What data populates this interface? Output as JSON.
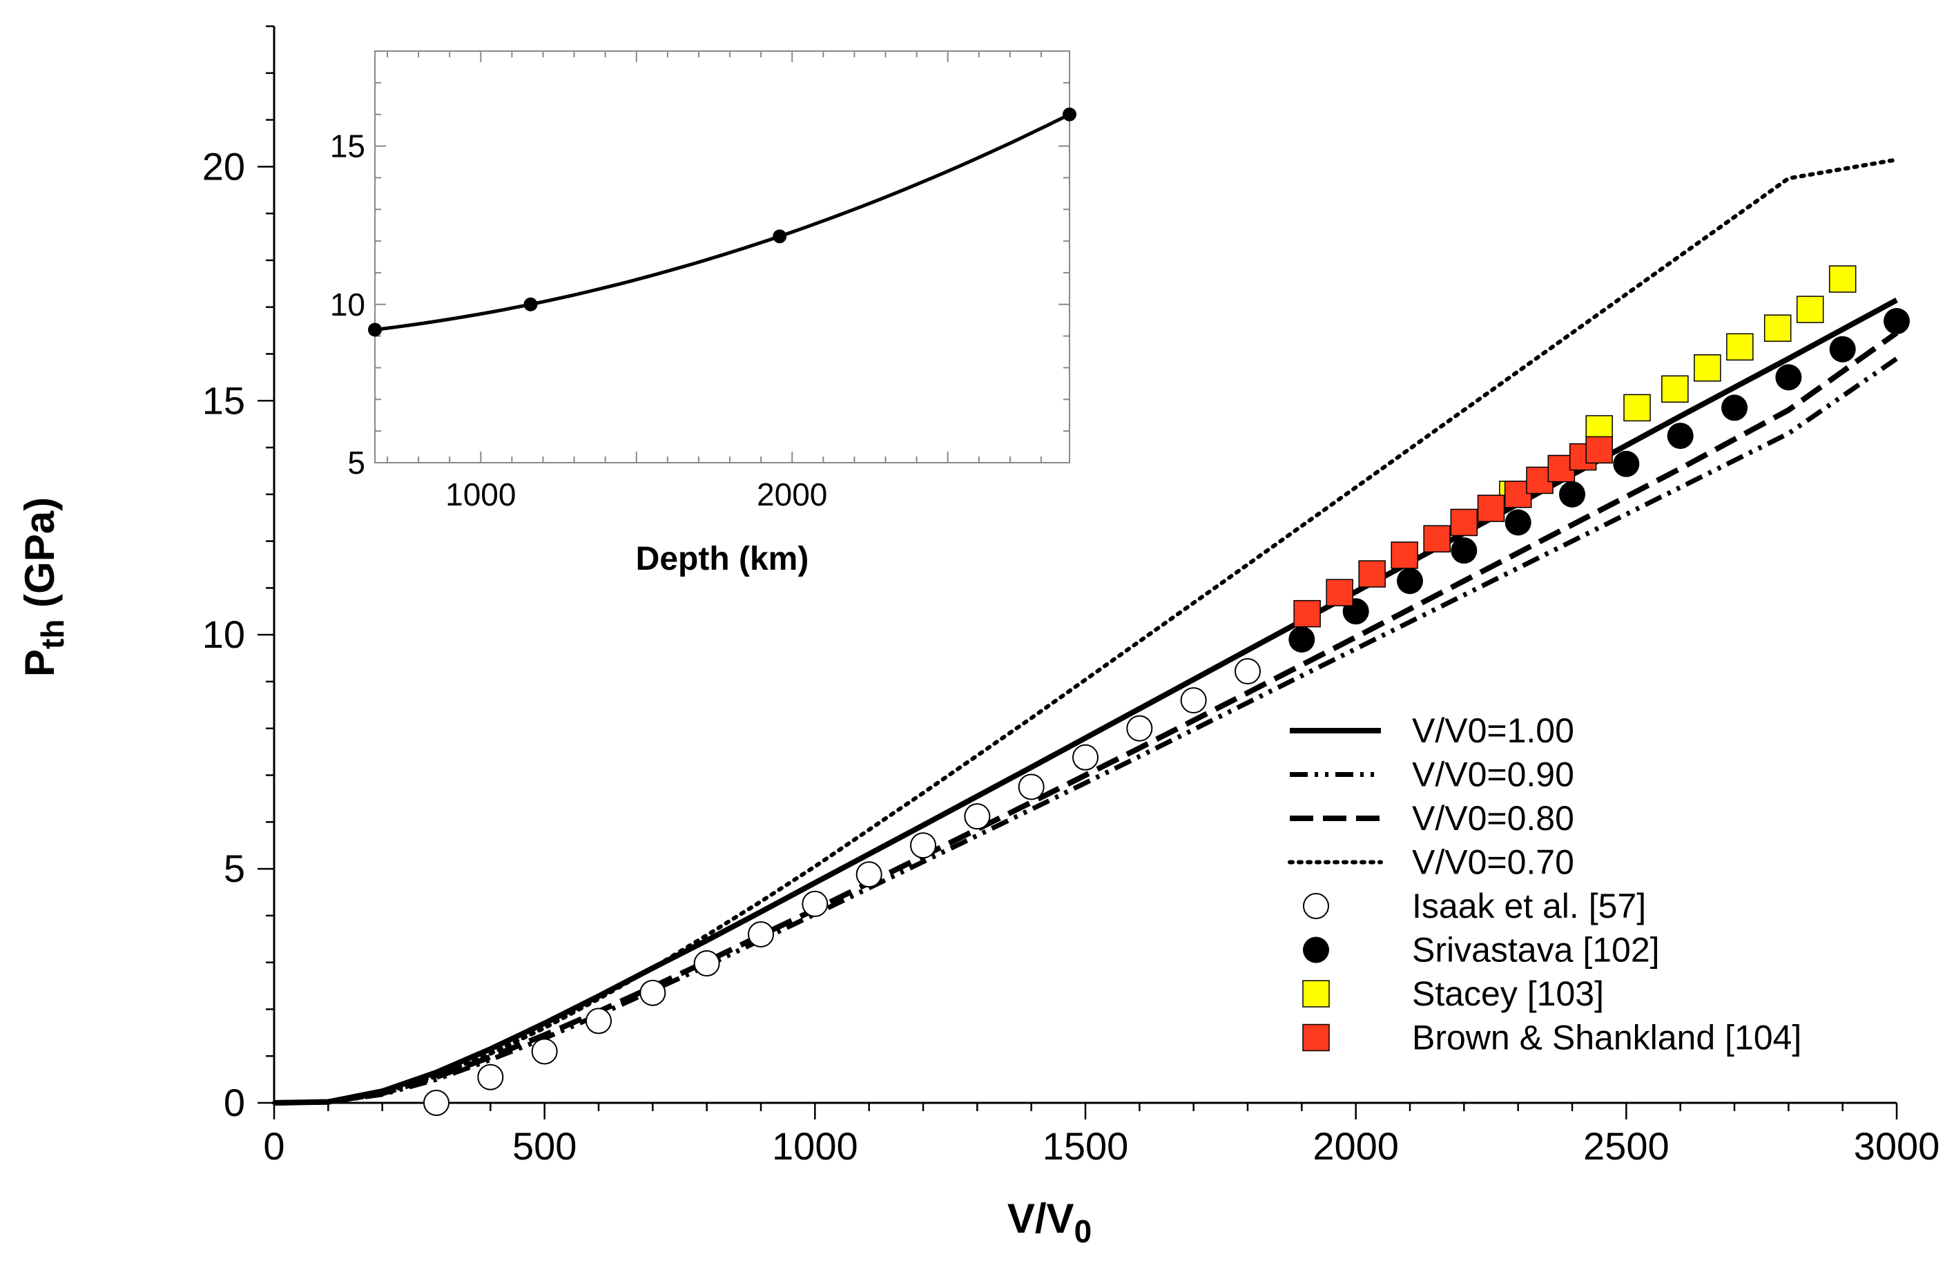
{
  "chart_data": [
    {
      "type": "line",
      "xlabel": "V/V",
      "xlabel_sub": "0",
      "ylabel": "P",
      "ylabel_sub": "th",
      "ylabel_unit": " (GPa)",
      "xlim": [
        0,
        3000
      ],
      "ylim": [
        0,
        23
      ],
      "xticks": [
        "0",
        "500",
        "1000",
        "1500",
        "2000",
        "2500",
        "3000"
      ],
      "xtick_values": [
        0,
        500,
        1000,
        1500,
        2000,
        2500,
        3000
      ],
      "yticks": [
        "0",
        "5",
        "10",
        "15",
        "20"
      ],
      "ytick_values": [
        0,
        5,
        10,
        15,
        20
      ],
      "grid": false,
      "legend_position": "lower-right",
      "series": [
        {
          "name": "V/V0=1.00",
          "style": "solid",
          "color": "#000000",
          "x": [
            0,
            100,
            200,
            300,
            400,
            500,
            600,
            700,
            800,
            900,
            1000,
            1200,
            1400,
            1600,
            1800,
            2000,
            2200,
            2400,
            2600,
            2800,
            3000
          ],
          "y": [
            0,
            0.02,
            0.25,
            0.65,
            1.15,
            1.7,
            2.28,
            2.88,
            3.47,
            4.08,
            4.7,
            5.93,
            7.17,
            8.42,
            9.67,
            10.92,
            12.17,
            13.42,
            14.67,
            15.9,
            17.15
          ]
        },
        {
          "name": "V/V0=0.90",
          "style": "dashdotdot",
          "color": "#000000",
          "x": [
            0,
            100,
            200,
            300,
            400,
            500,
            600,
            700,
            800,
            900,
            1000,
            1200,
            1400,
            1600,
            1800,
            2000,
            2200,
            2400,
            2600,
            2800,
            3000
          ],
          "y": [
            0,
            0.02,
            0.18,
            0.5,
            0.92,
            1.38,
            1.88,
            2.4,
            2.93,
            3.48,
            4.03,
            5.15,
            6.27,
            7.4,
            8.55,
            9.7,
            10.85,
            12.0,
            13.15,
            14.3,
            15.9
          ]
        },
        {
          "name": "V/V0=0.80",
          "style": "dashed",
          "color": "#000000",
          "x": [
            0,
            100,
            200,
            300,
            400,
            500,
            600,
            700,
            800,
            900,
            1000,
            1200,
            1400,
            1600,
            1800,
            2000,
            2200,
            2400,
            2600,
            2800,
            3000
          ],
          "y": [
            0,
            0.02,
            0.2,
            0.55,
            0.98,
            1.45,
            1.95,
            2.48,
            3.02,
            3.58,
            4.13,
            5.27,
            6.42,
            7.58,
            8.76,
            9.95,
            11.15,
            12.35,
            13.55,
            14.8,
            16.45
          ]
        },
        {
          "name": "V/V0=0.70",
          "style": "dotted",
          "color": "#000000",
          "x": [
            0,
            100,
            200,
            300,
            400,
            500,
            600,
            700,
            800,
            900,
            1000,
            1200,
            1400,
            1600,
            1800,
            2000,
            2200,
            2400,
            2600,
            2800,
            3000
          ],
          "y": [
            0,
            0.02,
            0.2,
            0.57,
            1.05,
            1.6,
            2.22,
            2.88,
            3.58,
            4.3,
            5.05,
            6.62,
            8.22,
            9.86,
            11.5,
            13.15,
            14.8,
            16.45,
            18.1,
            19.75,
            20.15
          ]
        },
        {
          "name": "Isaak et al. [57]",
          "marker": "circle-open",
          "color": "#ffffff",
          "x": [
            300,
            400,
            500,
            600,
            700,
            800,
            900,
            1000,
            1100,
            1200,
            1300,
            1400,
            1500,
            1600,
            1700,
            1800
          ],
          "y": [
            0.0,
            0.55,
            1.1,
            1.75,
            2.35,
            2.98,
            3.6,
            4.25,
            4.88,
            5.5,
            6.12,
            6.75,
            7.38,
            8.0,
            8.6,
            9.22
          ]
        },
        {
          "name": "Srivastava [102]",
          "marker": "circle-filled",
          "color": "#000000",
          "x": [
            1900,
            2000,
            2100,
            2200,
            2300,
            2400,
            2500,
            2600,
            2700,
            2800,
            2900,
            3000
          ],
          "y": [
            9.9,
            10.5,
            11.15,
            11.8,
            12.4,
            13.0,
            13.65,
            14.25,
            14.85,
            15.5,
            16.1,
            16.7
          ]
        },
        {
          "name": "Stacey [103]",
          "marker": "square",
          "color": "#ffff00",
          "x": [
            2290,
            2380,
            2450,
            2520,
            2590,
            2650,
            2710,
            2780,
            2840,
            2900
          ],
          "y": [
            13.0,
            13.55,
            14.4,
            14.85,
            15.25,
            15.7,
            16.15,
            16.55,
            16.95,
            17.6
          ]
        },
        {
          "name": "Brown & Shankland [104]",
          "marker": "square",
          "color": "#ff3b1f",
          "x": [
            1910,
            1970,
            2030,
            2090,
            2150,
            2200,
            2250,
            2300,
            2340,
            2380,
            2420,
            2450
          ],
          "y": [
            10.45,
            10.9,
            11.3,
            11.7,
            12.05,
            12.4,
            12.7,
            13.0,
            13.3,
            13.55,
            13.8,
            13.95
          ]
        }
      ]
    },
    {
      "type": "line",
      "inset": true,
      "xlabel": "Depth (km)",
      "ylabel": "",
      "xlim": [
        660,
        2891
      ],
      "ylim": [
        5,
        18
      ],
      "xticks": [
        "1000",
        "2000"
      ],
      "xtick_values": [
        1000,
        2000
      ],
      "yticks": [
        "5",
        "10",
        "15"
      ],
      "ytick_values": [
        5,
        10,
        15
      ],
      "grid": false,
      "series": [
        {
          "style": "solid",
          "marker": "circle-filled",
          "color": "#000000",
          "x": [
            660,
            1160,
            1960,
            2891
          ],
          "y": [
            9.2,
            10.0,
            12.15,
            16.0
          ]
        }
      ]
    }
  ]
}
